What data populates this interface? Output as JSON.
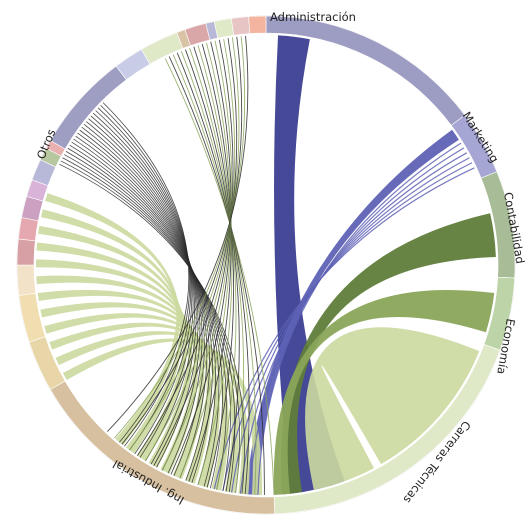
{
  "diagram": {
    "type": "chord",
    "groups": [
      {
        "id": "administracion",
        "label": "Administración",
        "color": "#9d9dc4"
      },
      {
        "id": "marketing",
        "label": "Marketing",
        "color": "#a6a6d4"
      },
      {
        "id": "contabilidad",
        "label": "Contabilidad",
        "color": "#a8bc98"
      },
      {
        "id": "economia",
        "label": "Economía",
        "color": "#bdd4a8"
      },
      {
        "id": "carreras-tecnicas",
        "label": "Carreras Técnicas",
        "color": "#dfe9c8"
      },
      {
        "id": "ing-industrial",
        "label": "Ing. Industrial",
        "color": "#d7c0a0"
      },
      {
        "id": "otros",
        "label": "Otros",
        "color": "#9e9ec2"
      }
    ],
    "colors": {
      "administracion_ribbon": "#3b3f91",
      "marketing_ribbon": "#5e62b5",
      "contabilidad_ribbon": "#607d3a",
      "economia_ribbon": "#8aa55a",
      "tecnicas_ribbon": "#cbd99e",
      "otros_lines": "#2a2a2a"
    }
  }
}
